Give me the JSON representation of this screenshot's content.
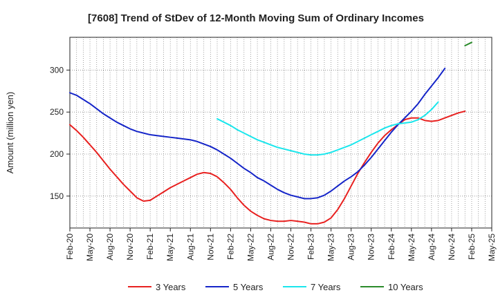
{
  "chart_data": {
    "type": "line",
    "title": "[7608]  Trend of StDev of 12-Month Moving Sum of Ordinary Incomes",
    "xlabel": "",
    "ylabel": "Amount (million yen)",
    "ylim": [
      112,
      339
    ],
    "yticks": [
      150,
      200,
      250,
      300
    ],
    "x_start": "2020-02",
    "x_end": "2025-05",
    "xtick_labels": [
      "Feb-20",
      "May-20",
      "Aug-20",
      "Nov-20",
      "Feb-21",
      "May-21",
      "Aug-21",
      "Nov-21",
      "Feb-22",
      "May-22",
      "Aug-22",
      "Nov-22",
      "Feb-23",
      "May-23",
      "Aug-23",
      "Nov-23",
      "Feb-24",
      "May-24",
      "Aug-24",
      "Nov-24",
      "Feb-25",
      "May-25"
    ],
    "grid": true,
    "legend_position": "bottom",
    "series": [
      {
        "name": "3 Years",
        "color": "#e8201f",
        "start": "2020-02",
        "values": [
          235,
          228,
          220,
          211,
          202,
          192,
          182,
          173,
          164,
          156,
          148,
          144,
          145,
          150,
          155,
          160,
          164,
          168,
          172,
          176,
          178,
          177,
          173,
          166,
          158,
          148,
          139,
          132,
          127,
          123,
          121,
          120,
          120,
          121,
          120,
          119,
          117,
          117,
          119,
          124,
          134,
          147,
          162,
          177,
          190,
          202,
          213,
          222,
          229,
          235,
          241,
          243,
          243,
          240,
          239,
          240,
          243,
          246,
          249,
          251
        ]
      },
      {
        "name": "5 Years",
        "color": "#1424c8",
        "start": "2020-02",
        "values": [
          273,
          270,
          265,
          260,
          254,
          248,
          243,
          238,
          234,
          230,
          227,
          225,
          223,
          222,
          221,
          220,
          219,
          218,
          217,
          215,
          212,
          209,
          205,
          200,
          195,
          189,
          183,
          178,
          172,
          168,
          163,
          158,
          154,
          151,
          149,
          147,
          147,
          148,
          151,
          156,
          162,
          168,
          173,
          179,
          187,
          196,
          206,
          216,
          226,
          235,
          243,
          251,
          260,
          271,
          281,
          291,
          302
        ]
      },
      {
        "name": "7 Years",
        "color": "#19e6ec",
        "start": "2021-12",
        "values": [
          242,
          238,
          234,
          229,
          225,
          221,
          217,
          214,
          211,
          208,
          206,
          204,
          202,
          200,
          199,
          199,
          200,
          202,
          205,
          208,
          211,
          215,
          219,
          223,
          227,
          231,
          234,
          236,
          237,
          238,
          241,
          246,
          253,
          262
        ]
      },
      {
        "name": "10 Years",
        "color": "#2a8a2a",
        "start": "2025-01",
        "values": [
          329,
          333
        ]
      }
    ]
  }
}
